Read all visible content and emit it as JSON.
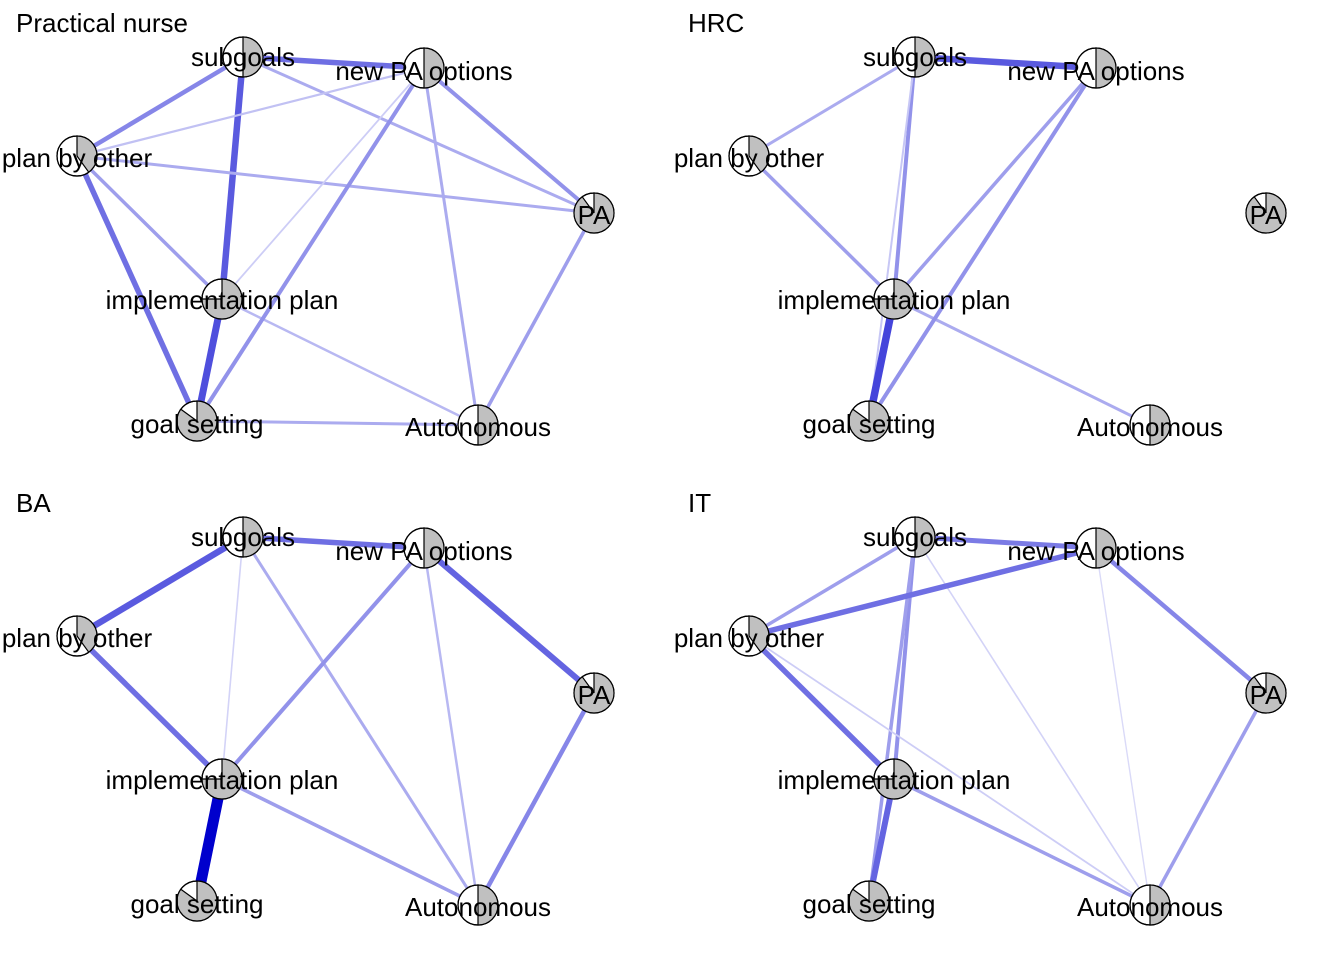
{
  "nodes": [
    {
      "id": "subgoals",
      "label": "subgoals"
    },
    {
      "id": "new_pa",
      "label": "new PA options"
    },
    {
      "id": "plan_other",
      "label": "plan by other"
    },
    {
      "id": "pa",
      "label": "PA"
    },
    {
      "id": "impl",
      "label": "implementation plan"
    },
    {
      "id": "goal",
      "label": "goal setting"
    },
    {
      "id": "auto",
      "label": "Autonomous"
    }
  ],
  "panels": [
    {
      "title": "Practical nurse",
      "fills": {
        "subgoals": 0.5,
        "new_pa": 0.5,
        "plan_other": 0.4,
        "pa": 0.9,
        "impl": 0.75,
        "goal": 0.85,
        "auto": 0.5
      },
      "edges": [
        {
          "a": "subgoals",
          "b": "new_pa",
          "w": 0.45
        },
        {
          "a": "subgoals",
          "b": "plan_other",
          "w": 0.35
        },
        {
          "a": "subgoals",
          "b": "impl",
          "w": 0.55
        },
        {
          "a": "subgoals",
          "b": "pa",
          "w": 0.2
        },
        {
          "a": "plan_other",
          "b": "new_pa",
          "w": 0.12
        },
        {
          "a": "plan_other",
          "b": "pa",
          "w": 0.2
        },
        {
          "a": "plan_other",
          "b": "impl",
          "w": 0.25
        },
        {
          "a": "plan_other",
          "b": "goal",
          "w": 0.45
        },
        {
          "a": "impl",
          "b": "goal",
          "w": 0.6
        },
        {
          "a": "impl",
          "b": "new_pa",
          "w": 0.08
        },
        {
          "a": "impl",
          "b": "auto",
          "w": 0.15
        },
        {
          "a": "goal",
          "b": "new_pa",
          "w": 0.3
        },
        {
          "a": "goal",
          "b": "auto",
          "w": 0.2
        },
        {
          "a": "new_pa",
          "b": "pa",
          "w": 0.3
        },
        {
          "a": "new_pa",
          "b": "auto",
          "w": 0.2
        },
        {
          "a": "pa",
          "b": "auto",
          "w": 0.25
        }
      ]
    },
    {
      "title": "HRC",
      "fills": {
        "subgoals": 0.5,
        "new_pa": 0.5,
        "plan_other": 0.4,
        "pa": 0.9,
        "impl": 0.75,
        "goal": 0.85,
        "auto": 0.5
      },
      "edges": [
        {
          "a": "subgoals",
          "b": "new_pa",
          "w": 0.55
        },
        {
          "a": "subgoals",
          "b": "plan_other",
          "w": 0.2
        },
        {
          "a": "subgoals",
          "b": "impl",
          "w": 0.3
        },
        {
          "a": "subgoals",
          "b": "goal",
          "w": 0.1
        },
        {
          "a": "plan_other",
          "b": "impl",
          "w": 0.25
        },
        {
          "a": "impl",
          "b": "goal",
          "w": 0.65
        },
        {
          "a": "impl",
          "b": "new_pa",
          "w": 0.25
        },
        {
          "a": "impl",
          "b": "auto",
          "w": 0.2
        },
        {
          "a": "goal",
          "b": "new_pa",
          "w": 0.3
        }
      ]
    },
    {
      "title": "BA",
      "fills": {
        "subgoals": 0.5,
        "new_pa": 0.5,
        "plan_other": 0.4,
        "pa": 0.9,
        "impl": 0.75,
        "goal": 0.85,
        "auto": 0.5
      },
      "edges": [
        {
          "a": "subgoals",
          "b": "new_pa",
          "w": 0.45
        },
        {
          "a": "subgoals",
          "b": "plan_other",
          "w": 0.55
        },
        {
          "a": "subgoals",
          "b": "impl",
          "w": 0.06
        },
        {
          "a": "subgoals",
          "b": "auto",
          "w": 0.2
        },
        {
          "a": "plan_other",
          "b": "impl",
          "w": 0.45
        },
        {
          "a": "impl",
          "b": "goal",
          "w": 1.0
        },
        {
          "a": "impl",
          "b": "new_pa",
          "w": 0.3
        },
        {
          "a": "impl",
          "b": "auto",
          "w": 0.25
        },
        {
          "a": "new_pa",
          "b": "pa",
          "w": 0.5
        },
        {
          "a": "new_pa",
          "b": "auto",
          "w": 0.15
        },
        {
          "a": "pa",
          "b": "auto",
          "w": 0.35
        }
      ]
    },
    {
      "title": "IT",
      "fills": {
        "subgoals": 0.5,
        "new_pa": 0.5,
        "plan_other": 0.4,
        "pa": 0.9,
        "impl": 0.75,
        "goal": 0.85,
        "auto": 0.5
      },
      "edges": [
        {
          "a": "subgoals",
          "b": "new_pa",
          "w": 0.4
        },
        {
          "a": "subgoals",
          "b": "plan_other",
          "w": 0.25
        },
        {
          "a": "subgoals",
          "b": "impl",
          "w": 0.3
        },
        {
          "a": "subgoals",
          "b": "goal",
          "w": 0.25
        },
        {
          "a": "subgoals",
          "b": "auto",
          "w": 0.06
        },
        {
          "a": "plan_other",
          "b": "new_pa",
          "w": 0.45
        },
        {
          "a": "plan_other",
          "b": "impl",
          "w": 0.45
        },
        {
          "a": "plan_other",
          "b": "auto",
          "w": 0.08
        },
        {
          "a": "impl",
          "b": "goal",
          "w": 0.5
        },
        {
          "a": "impl",
          "b": "auto",
          "w": 0.25
        },
        {
          "a": "new_pa",
          "b": "pa",
          "w": 0.35
        },
        {
          "a": "new_pa",
          "b": "auto",
          "w": 0.04
        },
        {
          "a": "pa",
          "b": "auto",
          "w": 0.25
        }
      ]
    }
  ]
}
